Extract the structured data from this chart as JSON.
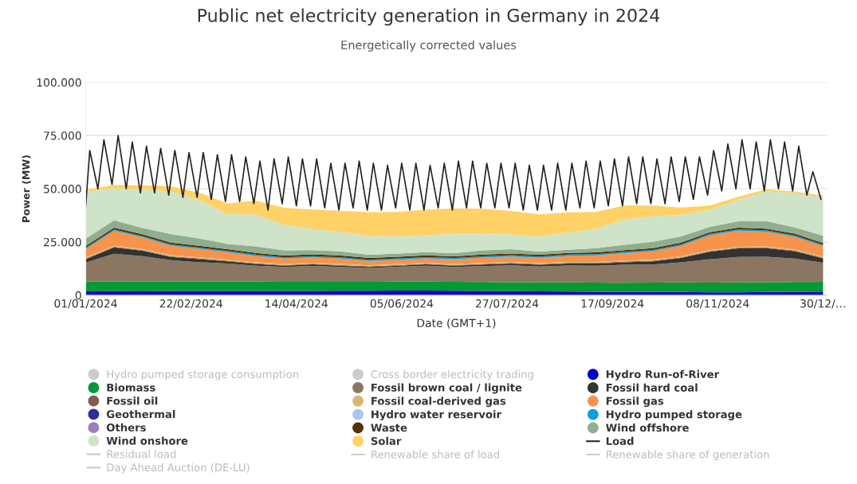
{
  "chart_data": {
    "type": "area",
    "stacked": true,
    "title": "Public net electricity generation in Germany in 2024",
    "subtitle": "Energetically corrected values",
    "xlabel": "Date (GMT+1)",
    "ylabel": "Power (MW)",
    "x": [
      "2024-01-01",
      "2024-01-15",
      "2024-01-29",
      "2024-02-12",
      "2024-02-26",
      "2024-03-11",
      "2024-03-25",
      "2024-04-08",
      "2024-04-22",
      "2024-05-06",
      "2024-05-20",
      "2024-06-03",
      "2024-06-17",
      "2024-07-01",
      "2024-07-15",
      "2024-07-29",
      "2024-08-12",
      "2024-08-26",
      "2024-09-09",
      "2024-09-23",
      "2024-10-07",
      "2024-10-21",
      "2024-11-04",
      "2024-11-18",
      "2024-12-02",
      "2024-12-16",
      "2024-12-30"
    ],
    "xlim": [
      "2024-01-01",
      "2024-12-31T23:00"
    ],
    "xticks": [
      {
        "value": "2024-01-01",
        "label": "01/01/2024"
      },
      {
        "value": "2024-02-22",
        "label": "22/02/2024"
      },
      {
        "value": "2024-04-14",
        "label": "14/04/2024"
      },
      {
        "value": "2024-06-05",
        "label": "05/06/2024"
      },
      {
        "value": "2024-07-27",
        "label": "27/07/2024"
      },
      {
        "value": "2024-09-17",
        "label": "17/09/2024"
      },
      {
        "value": "2024-11-08",
        "label": "08/11/2024"
      },
      {
        "value": "2024-12-30",
        "label": "30/12/…"
      }
    ],
    "ylim": [
      0,
      100000
    ],
    "yticks": [
      {
        "value": 0,
        "label": "0"
      },
      {
        "value": 25000,
        "label": "25.000"
      },
      {
        "value": 50000,
        "label": "50.000"
      },
      {
        "value": 75000,
        "label": "75.000"
      },
      {
        "value": 100000,
        "label": "100.000"
      }
    ],
    "grid": "y",
    "legend": "bottom",
    "series": [
      {
        "name": "Hydro pumped storage consumption",
        "color": "#cccccc",
        "values": [
          null,
          null,
          null,
          null,
          null,
          null,
          null,
          null,
          null,
          null,
          null,
          null,
          null,
          null,
          null,
          null,
          null,
          null,
          null,
          null,
          null,
          null,
          null,
          null,
          null,
          null,
          null
        ]
      },
      {
        "name": "Cross border electricity trading",
        "color": "#cccccc",
        "values": [
          null,
          null,
          null,
          null,
          null,
          null,
          null,
          null,
          null,
          null,
          null,
          null,
          null,
          null,
          null,
          null,
          null,
          null,
          null,
          null,
          null,
          null,
          null,
          null,
          null,
          null,
          null
        ]
      },
      {
        "name": "Hydro Run-of-River",
        "color": "#0000cc",
        "values": [
          1800,
          1900,
          1800,
          2000,
          2000,
          2000,
          2000,
          2000,
          2000,
          2100,
          2100,
          2200,
          2200,
          2100,
          2000,
          1900,
          1800,
          1700,
          1600,
          1500,
          1500,
          1500,
          1400,
          1400,
          1500,
          1600,
          1700
        ]
      },
      {
        "name": "Biomass",
        "color": "#009933",
        "values": [
          4600,
          4600,
          4600,
          4500,
          4500,
          4400,
          4400,
          4300,
          4300,
          4200,
          4200,
          4200,
          4200,
          4200,
          4200,
          4200,
          4200,
          4300,
          4300,
          4300,
          4400,
          4500,
          4500,
          4600,
          4600,
          4600,
          4600
        ]
      },
      {
        "name": "Fossil brown coal / lignite",
        "color": "#8b7662",
        "values": [
          9000,
          13000,
          12000,
          10000,
          9000,
          8500,
          7500,
          7000,
          7500,
          7000,
          6500,
          7000,
          7500,
          7000,
          7500,
          8000,
          7500,
          8000,
          8000,
          8500,
          8500,
          9500,
          11000,
          12000,
          12000,
          11000,
          9000
        ]
      },
      {
        "name": "Fossil hard coal",
        "color": "#333333",
        "values": [
          1500,
          3000,
          2500,
          1500,
          1500,
          1000,
          800,
          600,
          700,
          600,
          500,
          500,
          600,
          600,
          700,
          800,
          800,
          900,
          1000,
          1200,
          1500,
          2000,
          3500,
          4000,
          4000,
          3500,
          2000
        ]
      },
      {
        "name": "Fossil oil",
        "color": "#7f5f4c",
        "values": [
          300,
          300,
          300,
          300,
          300,
          300,
          300,
          300,
          300,
          300,
          300,
          300,
          300,
          300,
          300,
          300,
          300,
          300,
          300,
          300,
          300,
          300,
          300,
          300,
          300,
          300,
          300
        ]
      },
      {
        "name": "Fossil coal-derived gas",
        "color": "#d8b870",
        "values": [
          500,
          500,
          500,
          500,
          500,
          500,
          500,
          500,
          500,
          500,
          500,
          500,
          500,
          500,
          500,
          500,
          500,
          500,
          500,
          500,
          500,
          500,
          500,
          500,
          500,
          500,
          500
        ]
      },
      {
        "name": "Fossil gas",
        "color": "#f7934c",
        "values": [
          4000,
          7000,
          5500,
          4500,
          4000,
          3500,
          3000,
          2500,
          2500,
          2500,
          2000,
          2000,
          2000,
          2200,
          2500,
          2500,
          2500,
          2800,
          3000,
          3500,
          4000,
          5000,
          7000,
          7500,
          7000,
          6000,
          5000
        ]
      },
      {
        "name": "Geothermal",
        "color": "#2e2e99",
        "values": [
          null,
          null,
          null,
          null,
          null,
          null,
          null,
          null,
          null,
          null,
          null,
          null,
          null,
          null,
          null,
          null,
          null,
          null,
          null,
          null,
          null,
          null,
          null,
          null,
          null,
          null,
          null
        ]
      },
      {
        "name": "Hydro water reservoir",
        "color": "#a8c6f5",
        "values": [
          null,
          null,
          null,
          null,
          null,
          null,
          null,
          null,
          null,
          null,
          null,
          null,
          null,
          null,
          null,
          null,
          null,
          null,
          null,
          null,
          null,
          null,
          null,
          null,
          null,
          null,
          null
        ]
      },
      {
        "name": "Hydro pumped storage",
        "color": "#0e9ce0",
        "values": [
          600,
          600,
          600,
          600,
          600,
          600,
          600,
          600,
          600,
          600,
          600,
          600,
          600,
          600,
          600,
          600,
          600,
          600,
          600,
          600,
          600,
          600,
          600,
          600,
          600,
          600,
          600
        ]
      },
      {
        "name": "Others",
        "color": "#9b7fbf",
        "values": [
          null,
          null,
          null,
          null,
          null,
          null,
          null,
          null,
          null,
          null,
          null,
          null,
          null,
          null,
          null,
          null,
          null,
          null,
          null,
          null,
          null,
          null,
          null,
          null,
          null,
          null,
          null
        ]
      },
      {
        "name": "Waste",
        "color": "#513203",
        "values": [
          800,
          800,
          800,
          800,
          800,
          800,
          800,
          800,
          800,
          800,
          800,
          800,
          800,
          800,
          800,
          800,
          800,
          800,
          800,
          800,
          800,
          800,
          800,
          800,
          800,
          800,
          800
        ]
      },
      {
        "name": "Wind offshore",
        "color": "#8fae8f",
        "values": [
          3500,
          3500,
          3000,
          4000,
          3500,
          2500,
          3000,
          2500,
          2000,
          2000,
          1500,
          1500,
          1500,
          1500,
          2000,
          2000,
          1500,
          1500,
          2000,
          2500,
          3000,
          3000,
          2500,
          3000,
          3500,
          3000,
          3500
        ]
      },
      {
        "name": "Wind onshore",
        "color": "#cfe3c8",
        "values": [
          22000,
          15000,
          18000,
          20000,
          18000,
          14000,
          15000,
          12000,
          10000,
          9000,
          9000,
          8000,
          8000,
          9000,
          8000,
          7000,
          7000,
          8000,
          9000,
          12000,
          12000,
          10000,
          8000,
          10000,
          14000,
          16000,
          18000
        ]
      },
      {
        "name": "Solar",
        "color": "#ffd166",
        "values": [
          1000,
          1500,
          2000,
          2500,
          3500,
          5000,
          6500,
          8000,
          9000,
          10000,
          11000,
          11500,
          12000,
          12000,
          11500,
          11000,
          10500,
          9500,
          8000,
          6500,
          5000,
          3500,
          2000,
          1500,
          1000,
          800,
          900
        ]
      },
      {
        "name": "Load",
        "type": "line",
        "color": "#222222",
        "x": [
          "2024-01-01",
          "2024-01-03",
          "2024-01-07",
          "2024-01-10",
          "2024-01-14",
          "2024-01-17",
          "2024-01-21",
          "2024-01-24",
          "2024-01-28",
          "2024-01-31",
          "2024-02-04",
          "2024-02-07",
          "2024-02-11",
          "2024-02-14",
          "2024-02-18",
          "2024-02-21",
          "2024-02-25",
          "2024-02-28",
          "2024-03-03",
          "2024-03-06",
          "2024-03-10",
          "2024-03-13",
          "2024-03-17",
          "2024-03-20",
          "2024-03-24",
          "2024-03-27",
          "2024-03-31",
          "2024-04-03",
          "2024-04-07",
          "2024-04-10",
          "2024-04-14",
          "2024-04-17",
          "2024-04-21",
          "2024-04-24",
          "2024-04-28",
          "2024-05-01",
          "2024-05-05",
          "2024-05-08",
          "2024-05-12",
          "2024-05-15",
          "2024-05-19",
          "2024-05-22",
          "2024-05-26",
          "2024-05-29",
          "2024-06-02",
          "2024-06-05",
          "2024-06-09",
          "2024-06-12",
          "2024-06-16",
          "2024-06-19",
          "2024-06-23",
          "2024-06-26",
          "2024-06-30",
          "2024-07-03",
          "2024-07-07",
          "2024-07-10",
          "2024-07-14",
          "2024-07-17",
          "2024-07-21",
          "2024-07-24",
          "2024-07-28",
          "2024-07-31",
          "2024-08-04",
          "2024-08-07",
          "2024-08-11",
          "2024-08-14",
          "2024-08-18",
          "2024-08-21",
          "2024-08-25",
          "2024-08-28",
          "2024-09-01",
          "2024-09-04",
          "2024-09-08",
          "2024-09-11",
          "2024-09-15",
          "2024-09-18",
          "2024-09-22",
          "2024-09-25",
          "2024-09-29",
          "2024-10-02",
          "2024-10-06",
          "2024-10-09",
          "2024-10-13",
          "2024-10-16",
          "2024-10-20",
          "2024-10-23",
          "2024-10-27",
          "2024-10-30",
          "2024-11-03",
          "2024-11-06",
          "2024-11-10",
          "2024-11-13",
          "2024-11-17",
          "2024-11-20",
          "2024-11-24",
          "2024-11-27",
          "2024-12-01",
          "2024-12-04",
          "2024-12-08",
          "2024-12-11",
          "2024-12-15",
          "2024-12-18",
          "2024-12-22",
          "2024-12-25",
          "2024-12-29"
        ],
        "values": [
          42000,
          68000,
          50000,
          73000,
          52000,
          75000,
          50000,
          72000,
          48000,
          70000,
          48000,
          69000,
          47000,
          68000,
          46000,
          67000,
          46000,
          67000,
          45000,
          66000,
          44000,
          66000,
          44000,
          65000,
          43000,
          63000,
          40000,
          64000,
          43000,
          65000,
          42000,
          64000,
          42000,
          64000,
          41000,
          62000,
          40000,
          62000,
          41000,
          63000,
          40000,
          62000,
          40000,
          61000,
          41000,
          62000,
          40000,
          62000,
          40000,
          61000,
          41000,
          62000,
          40000,
          63000,
          41000,
          63000,
          41000,
          62000,
          41000,
          62000,
          41000,
          62000,
          40000,
          61000,
          40000,
          61000,
          40000,
          62000,
          40000,
          62000,
          41000,
          63000,
          41000,
          63000,
          42000,
          64000,
          42000,
          65000,
          43000,
          65000,
          43000,
          64000,
          43000,
          65000,
          44000,
          65000,
          45000,
          65000,
          47000,
          68000,
          49000,
          71000,
          50000,
          73000,
          50000,
          72000,
          49000,
          73000,
          50000,
          72000,
          49000,
          70000,
          47000,
          58000,
          45000
        ]
      },
      {
        "name": "Residual load",
        "type": "line",
        "color": "#cccccc",
        "values": [
          null,
          null,
          null,
          null,
          null,
          null,
          null,
          null,
          null,
          null,
          null,
          null,
          null,
          null,
          null,
          null,
          null,
          null,
          null,
          null,
          null,
          null,
          null,
          null,
          null,
          null,
          null
        ]
      },
      {
        "name": "Renewable share of load",
        "type": "line",
        "color": "#cccccc",
        "values": [
          null,
          null,
          null,
          null,
          null,
          null,
          null,
          null,
          null,
          null,
          null,
          null,
          null,
          null,
          null,
          null,
          null,
          null,
          null,
          null,
          null,
          null,
          null,
          null,
          null,
          null,
          null
        ]
      },
      {
        "name": "Renewable share of generation",
        "type": "line",
        "color": "#cccccc",
        "values": [
          null,
          null,
          null,
          null,
          null,
          null,
          null,
          null,
          null,
          null,
          null,
          null,
          null,
          null,
          null,
          null,
          null,
          null,
          null,
          null,
          null,
          null,
          null,
          null,
          null,
          null,
          null
        ]
      },
      {
        "name": "Day Ahead Auction (DE-LU)",
        "type": "line",
        "color": "#cccccc",
        "values": [
          null,
          null,
          null,
          null,
          null,
          null,
          null,
          null,
          null,
          null,
          null,
          null,
          null,
          null,
          null,
          null,
          null,
          null,
          null,
          null,
          null,
          null,
          null,
          null,
          null,
          null,
          null
        ]
      }
    ]
  }
}
